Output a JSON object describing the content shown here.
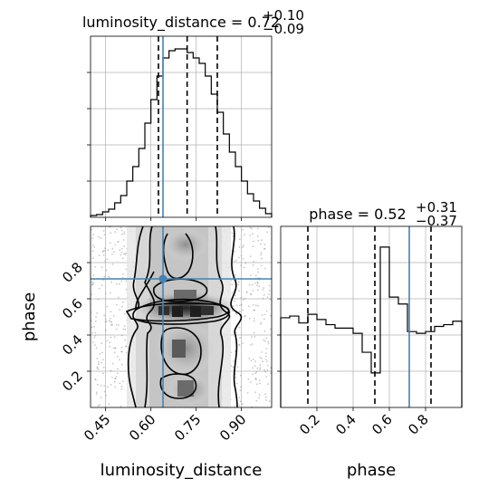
{
  "chart_data": {
    "type": "corner",
    "parameters": [
      "luminosity_distance",
      "phase"
    ],
    "truths": {
      "luminosity_distance": 0.64,
      "phase": 0.71
    },
    "panels": [
      {
        "name": "luminosity_distance-hist",
        "type": "histogram",
        "title_main": "luminosity_distance = 0.72",
        "title_plus": "+0.10",
        "title_minus": "−0.09",
        "xlim": [
          0.4,
          1.0
        ],
        "bin_edges": [
          0.4,
          0.42,
          0.44,
          0.46,
          0.48,
          0.5,
          0.52,
          0.54,
          0.56,
          0.58,
          0.6,
          0.62,
          0.64,
          0.66,
          0.68,
          0.7,
          0.72,
          0.74,
          0.76,
          0.78,
          0.8,
          0.82,
          0.84,
          0.86,
          0.88,
          0.9,
          0.92,
          0.94,
          0.96,
          0.98,
          1.0
        ],
        "counts": [
          0.01,
          0.015,
          0.03,
          0.045,
          0.08,
          0.12,
          0.2,
          0.28,
          0.38,
          0.52,
          0.65,
          0.78,
          0.88,
          0.92,
          0.93,
          0.93,
          0.91,
          0.88,
          0.85,
          0.78,
          0.68,
          0.58,
          0.46,
          0.36,
          0.28,
          0.2,
          0.13,
          0.09,
          0.05,
          0.02
        ],
        "ymax": 1.0,
        "quantiles": [
          0.625,
          0.72,
          0.82
        ],
        "truth": 0.64
      },
      {
        "name": "phase-hist",
        "type": "histogram",
        "title_main": "phase = 0.52",
        "title_plus": "+0.31",
        "title_minus": "−0.37",
        "xlim": [
          0.0,
          1.0
        ],
        "xticks": [
          0.2,
          0.4,
          0.6,
          0.8
        ],
        "xtick_labels": [
          "0.2",
          "0.4",
          "0.6",
          "0.8"
        ],
        "xlabel": "phase",
        "bin_edges": [
          0.0,
          0.05,
          0.1,
          0.15,
          0.2,
          0.25,
          0.3,
          0.35,
          0.4,
          0.45,
          0.5,
          0.55,
          0.6,
          0.65,
          0.7,
          0.75,
          0.8,
          0.85,
          0.9,
          0.95,
          1.0
        ],
        "counts": [
          0.52,
          0.53,
          0.49,
          0.54,
          0.51,
          0.48,
          0.46,
          0.46,
          0.43,
          0.32,
          0.2,
          0.93,
          0.64,
          0.6,
          0.44,
          0.43,
          0.44,
          0.47,
          0.48,
          0.5
        ],
        "ymax": 1.05,
        "quantiles": [
          0.15,
          0.52,
          0.83
        ],
        "truth": 0.71
      },
      {
        "name": "2d-density",
        "type": "2d-histogram",
        "xlim": [
          0.4,
          1.0
        ],
        "ylim": [
          0.0,
          1.0
        ],
        "xticks": [
          0.45,
          0.6,
          0.75,
          0.9
        ],
        "xtick_labels": [
          "0.45",
          "0.60",
          "0.75",
          "0.90"
        ],
        "yticks": [
          0.2,
          0.4,
          0.6,
          0.8
        ],
        "ytick_labels": [
          "0.2",
          "0.4",
          "0.6",
          "0.8"
        ],
        "xlabel": "luminosity_distance",
        "ylabel": "phase",
        "truth_point": [
          0.64,
          0.71
        ]
      }
    ]
  },
  "colors": {
    "truth": "#4682b4",
    "line": "#000000",
    "grid": "#b0b0b0",
    "density_dark": "#1a1a1a",
    "density_light": "#f5f5f5"
  }
}
